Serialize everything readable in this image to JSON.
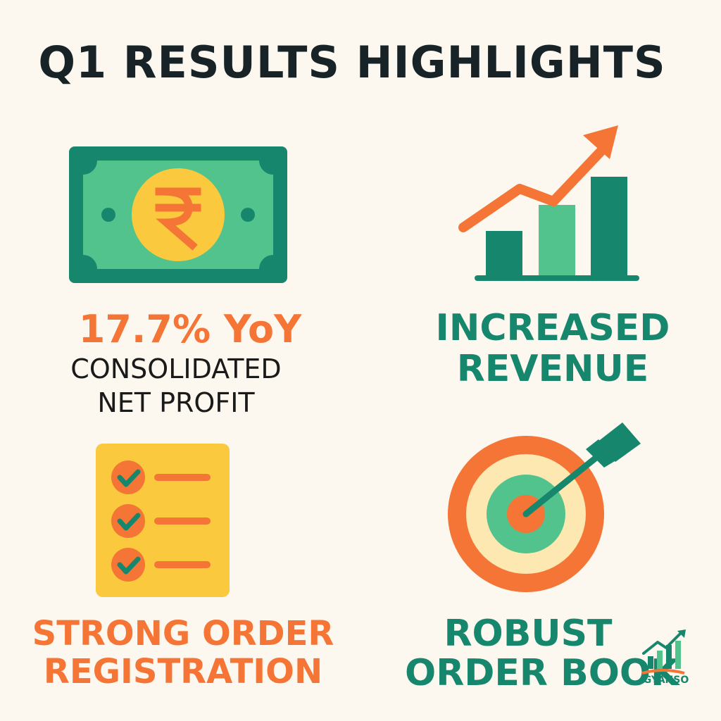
{
  "title": "Q1 RESULTS HIGHLIGHTS",
  "colors": {
    "background": "#FCF8EF",
    "orange": "#F47535",
    "teal": "#16876C",
    "green_light": "#52C38D",
    "yellow": "#FBC93D",
    "cream": "#FCE8B0",
    "dark": "#172326"
  },
  "highlights": {
    "profit": {
      "icon": "rupee-banknote-icon",
      "figure": "17.7% YoY",
      "line1": "CONSOLIDATED",
      "line2": "NET PROFIT"
    },
    "revenue": {
      "icon": "growth-bar-chart-icon",
      "line1": "INCREASED",
      "line2": "REVENUE"
    },
    "orders": {
      "icon": "checklist-icon",
      "line1": "STRONG ORDER",
      "line2": "REGISTRATION"
    },
    "book": {
      "icon": "target-arrow-icon",
      "line1": "ROBUST",
      "line2": "ORDER BOOK"
    }
  },
  "logo": {
    "icon": "gyanso-logo-icon",
    "text": "GYANSO"
  }
}
